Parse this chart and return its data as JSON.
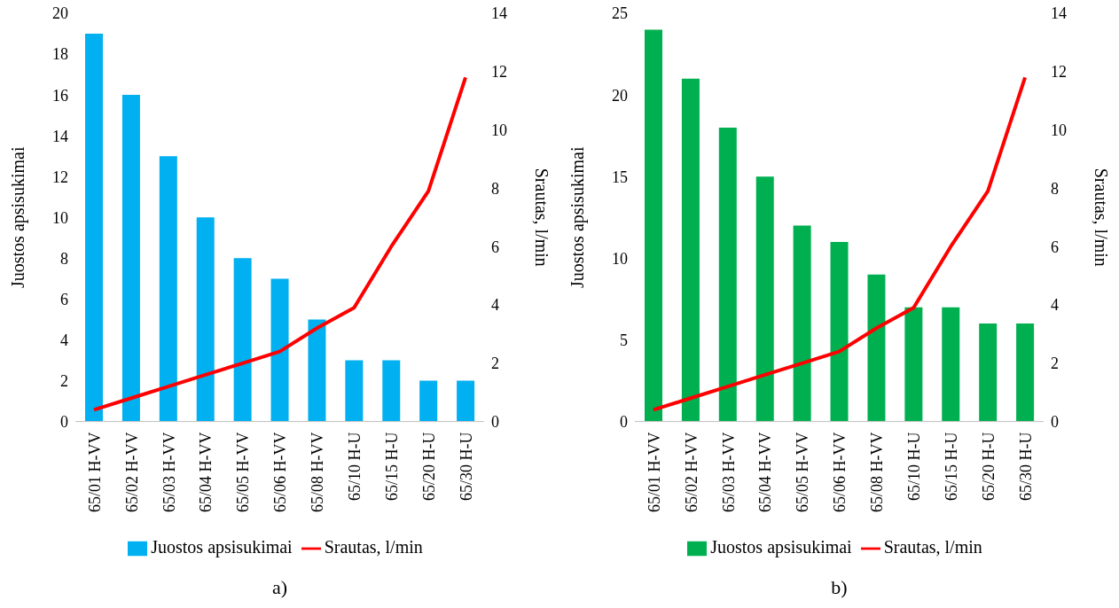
{
  "chart_data": [
    {
      "type": "bar",
      "categories": [
        "65/01 H-VV",
        "65/02 H-VV",
        "65/03 H-VV",
        "65/04 H-VV",
        "65/05 H-VV",
        "65/06 H-VV",
        "65/08 H-VV",
        "65/10 H-U",
        "65/15 H-U",
        "65/20 H-U",
        "65/30 H-U"
      ],
      "ylabel": "Juostos apsisukimai",
      "y2label": "Srautas, l/min",
      "ylim": [
        0,
        20
      ],
      "yticks": [
        0,
        2,
        4,
        6,
        8,
        10,
        12,
        14,
        16,
        18,
        20
      ],
      "y2lim": [
        0,
        14
      ],
      "y2ticks": [
        0,
        2,
        4,
        6,
        8,
        10,
        12,
        14
      ],
      "grid": false,
      "legend": "bottom",
      "marker": "none",
      "annotations": [
        "a)"
      ],
      "series": [
        {
          "name": "Juostos apsisukimai",
          "color": "#00b0f0",
          "values": [
            19,
            16,
            13,
            10,
            8,
            7,
            5,
            3,
            3,
            2,
            2
          ]
        },
        {
          "name": "Srautas, l/min",
          "type": "line",
          "axis": "y2",
          "color": "#ff0000",
          "values": [
            0.4,
            0.8,
            1.2,
            1.6,
            2.0,
            2.4,
            3.2,
            3.9,
            6.0,
            7.9,
            11.8
          ]
        }
      ]
    },
    {
      "type": "bar",
      "categories": [
        "65/01 H-VV",
        "65/02 H-VV",
        "65/03 H-VV",
        "65/04 H-VV",
        "65/05 H-VV",
        "65/06 H-VV",
        "65/08 H-VV",
        "65/10 H-U",
        "65/15 H-U",
        "65/20 H-U",
        "65/30 H-U"
      ],
      "ylabel": "Juostos apsisukimai",
      "y2label": "Srautas, l/min",
      "ylim": [
        0,
        25
      ],
      "yticks": [
        0,
        5,
        10,
        15,
        20,
        25
      ],
      "y2lim": [
        0,
        14
      ],
      "y2ticks": [
        0,
        2,
        4,
        6,
        8,
        10,
        12,
        14
      ],
      "grid": false,
      "legend": "bottom",
      "marker": "none",
      "annotations": [
        "b)"
      ],
      "series": [
        {
          "name": "Juostos apsisukimai",
          "color": "#00b050",
          "values": [
            24,
            21,
            18,
            15,
            12,
            11,
            9,
            7,
            7,
            6,
            6
          ]
        },
        {
          "name": "Srautas, l/min",
          "type": "line",
          "axis": "y2",
          "color": "#ff0000",
          "values": [
            0.4,
            0.8,
            1.2,
            1.6,
            2.0,
            2.4,
            3.2,
            3.9,
            6.0,
            7.9,
            11.8
          ]
        }
      ]
    }
  ]
}
